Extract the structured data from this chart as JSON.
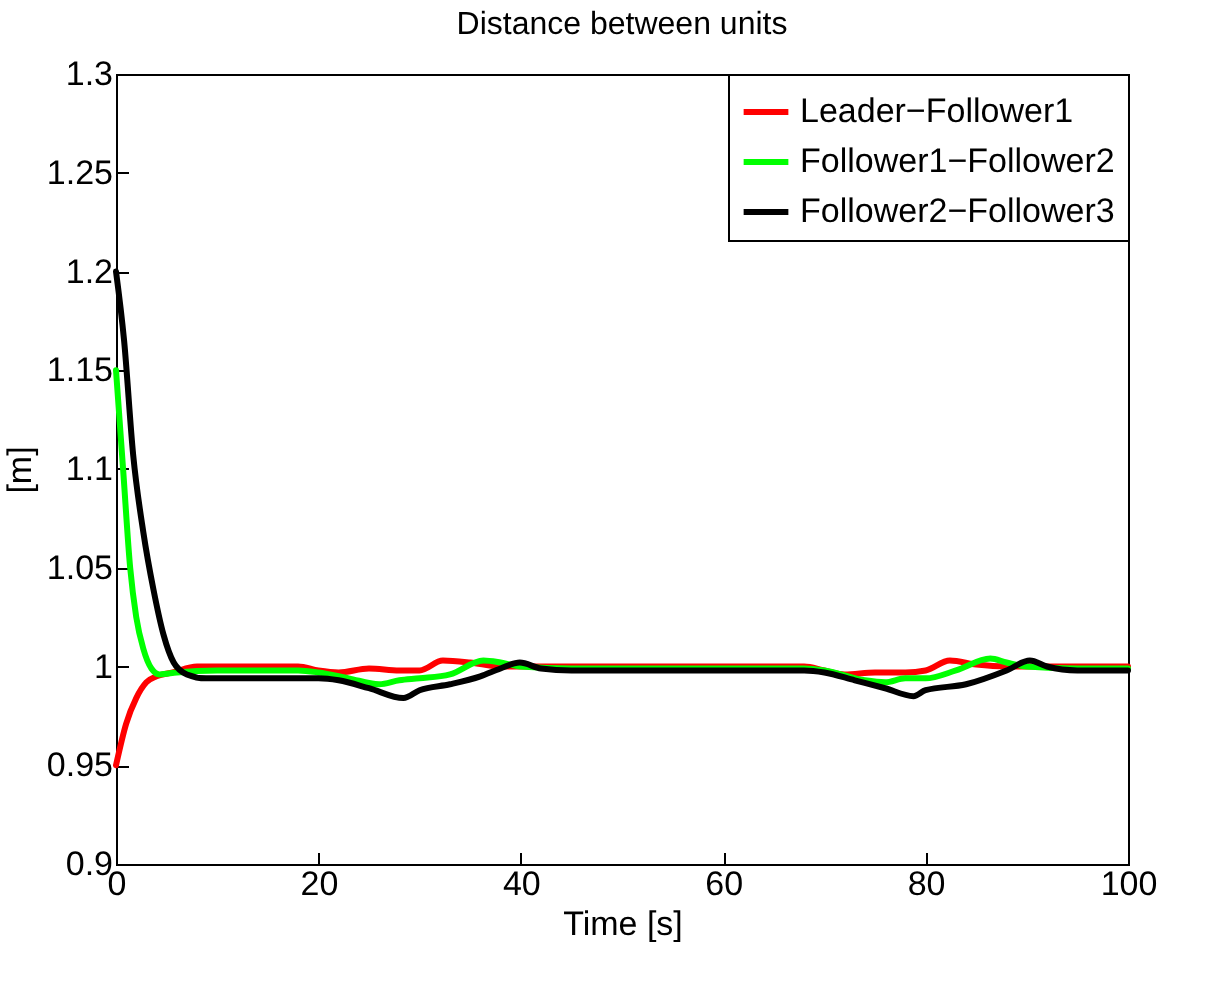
{
  "chart_data": {
    "type": "line",
    "title": "Distance between units",
    "xlabel": "Time [s]",
    "ylabel": "[m]",
    "xlim": [
      0,
      100
    ],
    "xticks": [
      0,
      20,
      40,
      60,
      80,
      100
    ],
    "ylim": [
      0.9,
      1.3
    ],
    "yticks": [
      0.9,
      0.95,
      1,
      1.05,
      1.1,
      1.15,
      1.2,
      1.25,
      1.3
    ],
    "grid": false,
    "legend": "top right",
    "line_style": "solid",
    "marker": "none",
    "series": [
      {
        "name": "Leader−Follower1",
        "color": "#ff0000",
        "x": [
          0,
          1,
          2,
          3,
          4,
          5.6,
          8,
          12,
          18,
          20,
          22,
          25,
          28,
          30,
          32.3,
          35,
          38,
          45,
          60,
          68,
          70,
          72,
          75,
          78,
          80,
          82.4,
          85,
          88,
          95,
          100
        ],
        "values": [
          0.95,
          0.971,
          0.984,
          0.992,
          0.995,
          0.997,
          1.0,
          1.0,
          1.0,
          0.998,
          0.997,
          0.999,
          0.998,
          0.998,
          1.003,
          1.002,
          1.0,
          1.0,
          1.0,
          1.0,
          0.998,
          0.996,
          0.997,
          0.997,
          0.998,
          1.003,
          1.001,
          1.0,
          1.0,
          1.0
        ]
      },
      {
        "name": "Follower1−Follower2",
        "color": "#00ff00",
        "x": [
          0,
          0.7,
          1.4,
          2,
          2.7,
          3.5,
          4.3,
          6,
          10,
          18,
          20,
          23,
          26,
          28,
          30,
          33,
          36.3,
          38,
          40,
          45,
          60,
          68,
          70,
          74,
          76,
          78,
          80,
          83,
          86.4,
          88,
          90,
          95,
          100
        ],
        "values": [
          1.15,
          1.1,
          1.05,
          1.025,
          1.009,
          0.999,
          0.996,
          0.997,
          0.998,
          0.998,
          0.997,
          0.994,
          0.991,
          0.993,
          0.994,
          0.996,
          1.003,
          1.002,
          1.0,
          0.999,
          0.999,
          0.999,
          0.998,
          0.993,
          0.992,
          0.994,
          0.994,
          0.998,
          1.004,
          1.002,
          1.0,
          0.999,
          0.999
        ]
      },
      {
        "name": "Follower2−Follower3",
        "color": "#000000",
        "x": [
          0,
          0.8,
          1.7,
          2.7,
          3.7,
          4.7,
          5.7,
          7,
          8.9,
          12,
          20,
          22,
          25,
          28.4,
          30,
          33,
          36,
          38,
          39.9,
          42,
          45,
          60,
          68,
          70,
          73,
          76,
          78.8,
          80,
          84,
          88,
          90.3,
          92,
          95,
          100
        ],
        "values": [
          1.2,
          1.165,
          1.107,
          1.068,
          1.039,
          1.016,
          1.002,
          0.996,
          0.994,
          0.994,
          0.994,
          0.993,
          0.989,
          0.984,
          0.988,
          0.991,
          0.995,
          0.999,
          1.002,
          0.999,
          0.998,
          0.998,
          0.998,
          0.997,
          0.993,
          0.989,
          0.985,
          0.988,
          0.991,
          0.998,
          1.003,
          1.0,
          0.998,
          0.998
        ]
      }
    ]
  }
}
